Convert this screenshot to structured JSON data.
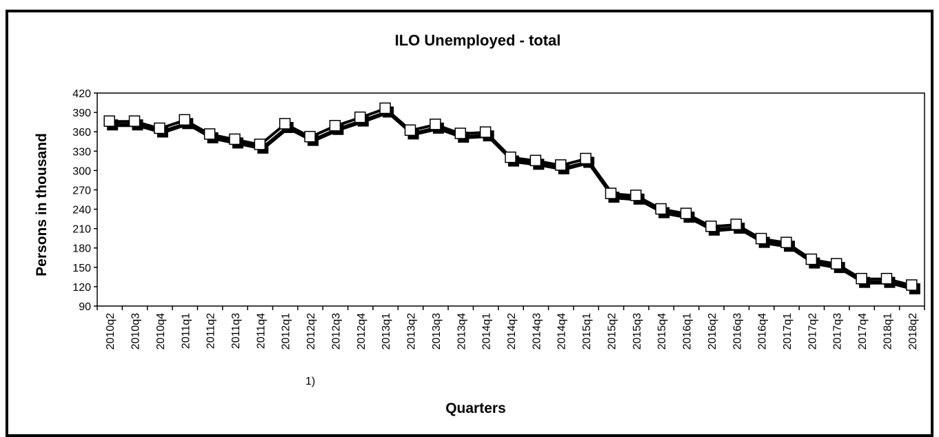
{
  "chart_data": {
    "type": "line",
    "title": "ILO Unemployed - total",
    "xlabel": "Quarters",
    "ylabel": "Persons in thousand",
    "ylim": [
      90,
      420
    ],
    "yticks": [
      90,
      120,
      150,
      180,
      210,
      240,
      270,
      300,
      330,
      360,
      390,
      420
    ],
    "grid": false,
    "legend": "none",
    "categories": [
      "2010q2",
      "2010q3",
      "2010q4",
      "2011q1",
      "2011q2",
      "2011q3",
      "2011q4",
      "2012q1",
      "2012q2",
      "2012q3",
      "2012q4",
      "2013q1",
      "2013q2",
      "2013q3",
      "2013q4",
      "2014q1",
      "2014q2",
      "2014q3",
      "2014q4",
      "2015q1",
      "2015q2",
      "2015q3",
      "2015q4",
      "2016q1",
      "2016q2",
      "2016q3",
      "2016q4",
      "2017q1",
      "2017q2",
      "2017q3",
      "2017q4",
      "2018q1",
      "2018q2"
    ],
    "category_notes": {
      "2012q2": "1)"
    },
    "series": [
      {
        "values": [
          376,
          376,
          365,
          378,
          356,
          348,
          340,
          372,
          352,
          369,
          382,
          396,
          362,
          371,
          357,
          359,
          320,
          315,
          308,
          318,
          264,
          261,
          240,
          233,
          213,
          216,
          194,
          188,
          162,
          155,
          132,
          132,
          122
        ],
        "color": "#000000",
        "marker": "square",
        "marker_fill": "#ffffff"
      }
    ]
  }
}
